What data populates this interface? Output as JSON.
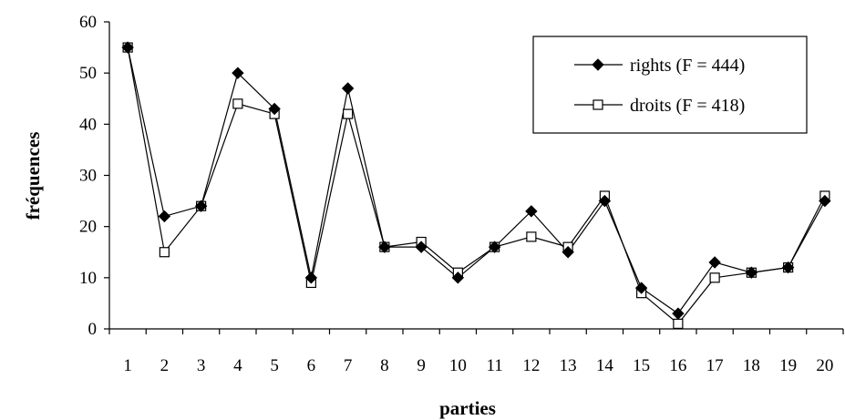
{
  "chart_data": {
    "type": "line",
    "title": "",
    "xlabel": "parties",
    "ylabel": "fréquences",
    "x": [
      1,
      2,
      3,
      4,
      5,
      6,
      7,
      8,
      9,
      10,
      11,
      12,
      13,
      14,
      15,
      16,
      17,
      18,
      19,
      20
    ],
    "ylim": [
      0,
      60
    ],
    "yticks": [
      0,
      10,
      20,
      30,
      40,
      50,
      60
    ],
    "grid": false,
    "legend_position": "top-right",
    "series": [
      {
        "name": "rights (F = 444)",
        "marker": "filled-diamond",
        "color": "#000000",
        "values": [
          55,
          22,
          24,
          50,
          43,
          10,
          47,
          16,
          16,
          10,
          16,
          23,
          15,
          25,
          8,
          3,
          13,
          11,
          12,
          25
        ]
      },
      {
        "name": "droits (F = 418)",
        "marker": "open-square",
        "color": "#000000",
        "values": [
          55,
          15,
          24,
          44,
          42,
          9,
          42,
          16,
          17,
          11,
          16,
          18,
          16,
          26,
          7,
          1,
          10,
          11,
          12,
          26
        ]
      }
    ]
  }
}
